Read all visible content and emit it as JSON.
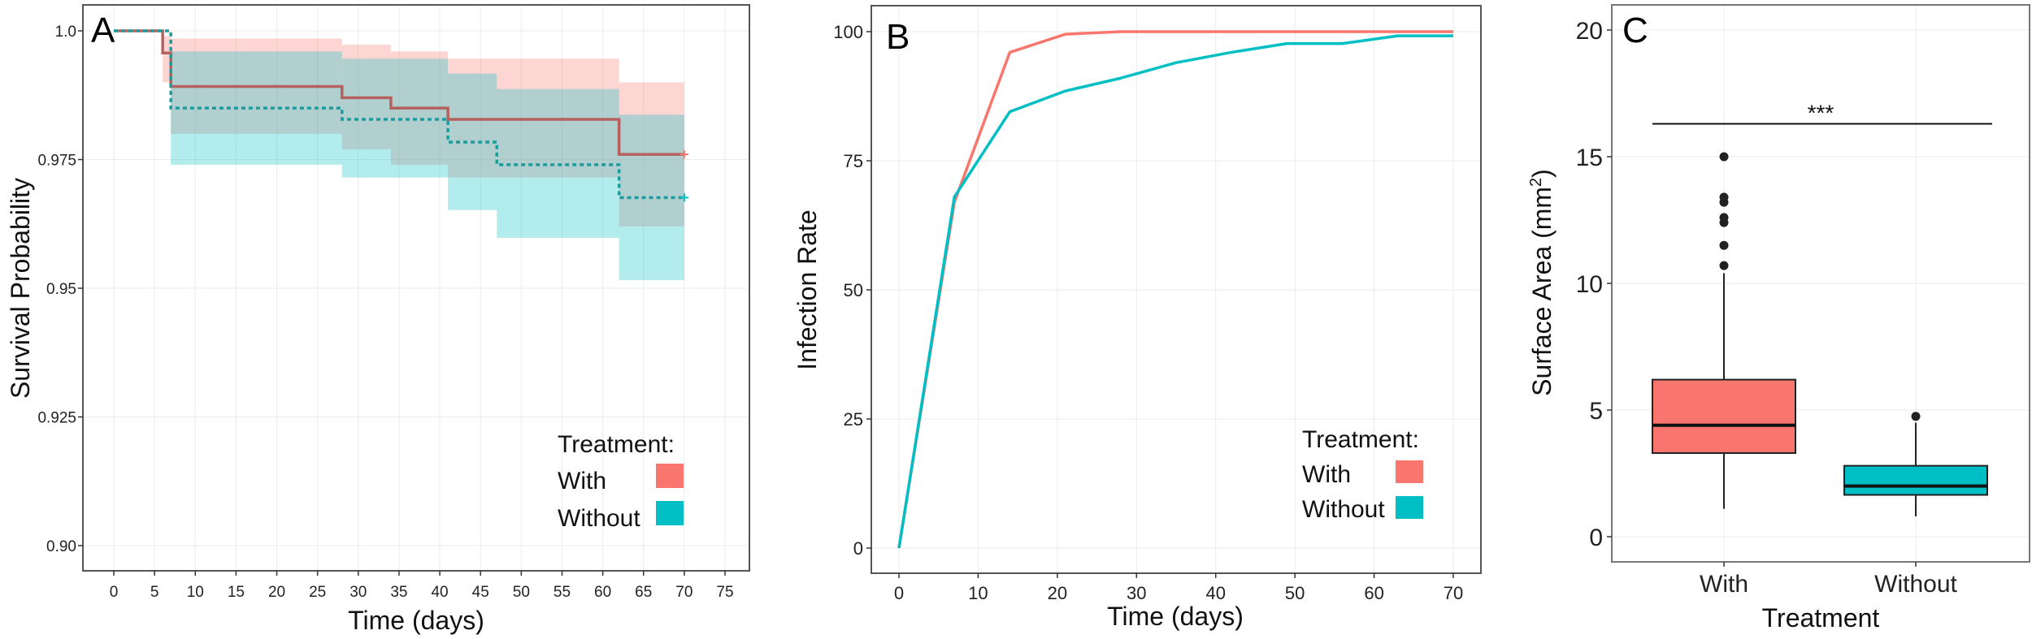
{
  "colors": {
    "with": "#F8766D",
    "without": "#00BFC4",
    "with_line": "#B5615D",
    "without_line": "#1C9C9C",
    "grid": "#EBEBEB",
    "frame": "#555555"
  },
  "chart_data": [
    {
      "panel": "A",
      "type": "line",
      "subtype": "kaplan-meier step",
      "xlabel": "Time (days)",
      "ylabel": "Survival Probability",
      "xlim": [
        -3.5,
        78.5
      ],
      "ylim": [
        0.8955,
        1.0035
      ],
      "xticks": [
        0,
        5,
        10,
        15,
        20,
        25,
        30,
        35,
        40,
        45,
        50,
        55,
        60,
        65,
        70,
        75
      ],
      "xtick_labels": [
        "0",
        "5",
        "10",
        "15",
        "20",
        "25",
        "30",
        "35",
        "40",
        "45",
        "50",
        "55",
        "60",
        "65",
        "70",
        "75"
      ],
      "yticks": [
        0.9,
        0.925,
        0.95,
        0.975,
        1.0
      ],
      "ytick_labels": [
        "0.90",
        "0.925",
        "0.95",
        "0.975",
        "1.0"
      ],
      "grid": true,
      "legend": {
        "title": "Treatment:",
        "placement": "bottom-right",
        "entries": [
          "With",
          "Without"
        ]
      },
      "series": [
        {
          "name": "With",
          "line_style": "solid",
          "times": [
            0,
            6,
            7,
            28,
            34,
            41,
            62,
            70
          ],
          "survival": [
            1.0,
            0.9957,
            0.9892,
            0.987,
            0.985,
            0.9828,
            0.976
          ],
          "ci_upper": [
            1.0,
            0.999,
            0.9985,
            0.9973,
            0.996,
            0.9946,
            0.99
          ],
          "ci_lower": [
            1.0,
            0.99,
            0.98,
            0.977,
            0.974,
            0.9715,
            0.962
          ]
        },
        {
          "name": "Without",
          "line_style": "dashed",
          "times": [
            0,
            7,
            28,
            41,
            47,
            62,
            70
          ],
          "survival": [
            1.0,
            0.985,
            0.9828,
            0.9784,
            0.974,
            0.9676
          ],
          "ci_upper": [
            1.0,
            0.996,
            0.9946,
            0.9917,
            0.9887,
            0.9837
          ],
          "ci_lower": [
            1.0,
            0.974,
            0.9715,
            0.9652,
            0.9598,
            0.9516
          ]
        }
      ]
    },
    {
      "panel": "B",
      "type": "line",
      "xlabel": "Time (days)",
      "ylabel": "Infection Rate",
      "xlim": [
        -3.5,
        73.5
      ],
      "ylim": [
        -5,
        105
      ],
      "xticks": [
        0,
        10,
        20,
        30,
        40,
        50,
        60,
        70
      ],
      "xtick_labels": [
        "0",
        "10",
        "20",
        "30",
        "40",
        "50",
        "60",
        "70"
      ],
      "yticks": [
        0,
        25,
        50,
        75,
        100
      ],
      "ytick_labels": [
        "0",
        "25",
        "50",
        "75",
        "100"
      ],
      "grid": true,
      "legend": {
        "title": "Treatment:",
        "placement": "bottom-right",
        "entries": [
          "With",
          "Without"
        ]
      },
      "series": [
        {
          "name": "With",
          "x": [
            0,
            7,
            14,
            21,
            28,
            35,
            42,
            49,
            56,
            63,
            70
          ],
          "y": [
            0,
            67,
            96,
            99.5,
            100,
            100,
            100,
            100,
            100,
            100,
            100
          ]
        },
        {
          "name": "Without",
          "x": [
            0,
            7,
            14,
            21,
            28,
            35,
            42,
            49,
            56,
            63,
            70
          ],
          "y": [
            0,
            68,
            84.5,
            88.5,
            91,
            94,
            96,
            97.7,
            97.7,
            99.2,
            99.2
          ]
        }
      ]
    },
    {
      "panel": "C",
      "type": "box",
      "xlabel": "Treatment",
      "ylabel": "Surface Area (mm",
      "ylabel_sup": "2",
      "ylabel_end": ")",
      "ylim": [
        -1,
        21
      ],
      "yticks": [
        0,
        5,
        10,
        15,
        20
      ],
      "ytick_labels": [
        "0",
        "5",
        "10",
        "15",
        "20"
      ],
      "grid": true,
      "categories": [
        "With",
        "Without"
      ],
      "boxes": [
        {
          "name": "With",
          "min": 1.1,
          "q1": 3.3,
          "median": 4.4,
          "q3": 6.2,
          "max": 10.4,
          "outliers": [
            10.7,
            11.5,
            12.4,
            12.6,
            13.2,
            13.4,
            15.0
          ]
        },
        {
          "name": "Without",
          "min": 0.8,
          "q1": 1.65,
          "median": 2.0,
          "q3": 2.8,
          "max": 4.5,
          "outliers": [
            4.75
          ]
        }
      ],
      "annotation": {
        "text": "***",
        "y": 16.3,
        "between": [
          "With",
          "Without"
        ]
      }
    }
  ],
  "panel_letters": [
    "A",
    "B",
    "C"
  ]
}
